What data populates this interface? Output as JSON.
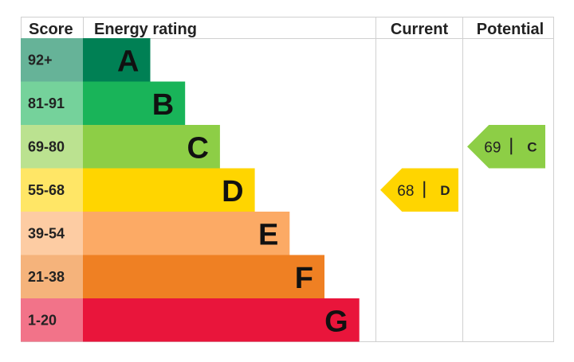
{
  "chart_data": {
    "type": "bar",
    "headers": {
      "score": "Score",
      "rating": "Energy rating",
      "current": "Current",
      "potential": "Potential"
    },
    "bands": [
      {
        "letter": "A",
        "score_range": "92+",
        "min": 92,
        "max": 100,
        "color": "#008054",
        "score_bg": "#66b398"
      },
      {
        "letter": "B",
        "score_range": "81-91",
        "min": 81,
        "max": 91,
        "color": "#19b459",
        "score_bg": "#75d29b"
      },
      {
        "letter": "C",
        "score_range": "69-80",
        "min": 69,
        "max": 80,
        "color": "#8dce46",
        "score_bg": "#bbe290"
      },
      {
        "letter": "D",
        "score_range": "55-68",
        "min": 55,
        "max": 68,
        "color": "#ffd500",
        "score_bg": "#ffe666"
      },
      {
        "letter": "E",
        "score_range": "39-54",
        "min": 39,
        "max": 54,
        "color": "#fcaa65",
        "score_bg": "#fdcca3"
      },
      {
        "letter": "F",
        "score_range": "21-38",
        "min": 21,
        "max": 38,
        "color": "#ef8023",
        "score_bg": "#f5b37b"
      },
      {
        "letter": "G",
        "score_range": "1-20",
        "min": 1,
        "max": 20,
        "color": "#e9153b",
        "score_bg": "#f27389"
      }
    ],
    "current": {
      "score": 68,
      "letter": "D",
      "color": "#ffd500"
    },
    "potential": {
      "score": 69,
      "letter": "C",
      "color": "#8dce46"
    }
  }
}
